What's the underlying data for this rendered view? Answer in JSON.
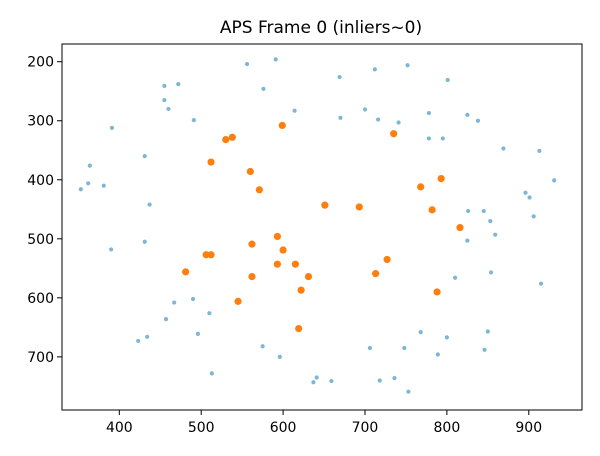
{
  "chart_data": {
    "type": "scatter",
    "title": "APS Frame 0 (inliers~0)",
    "xlabel": "",
    "ylabel": "",
    "xlim": [
      330,
      965
    ],
    "ylim": [
      790,
      170
    ],
    "y_inverted": true,
    "grid": false,
    "x_ticks": [
      400,
      500,
      600,
      700,
      800,
      900
    ],
    "y_ticks": [
      200,
      300,
      400,
      500,
      600,
      700
    ],
    "series": [
      {
        "color": "#7fb5d5",
        "marker_size": "small",
        "points": [
          [
            556,
            204
          ],
          [
            591,
            196
          ],
          [
            712,
            213
          ],
          [
            752,
            206
          ],
          [
            669,
            226
          ],
          [
            801,
            231
          ],
          [
            455,
            241
          ],
          [
            472,
            238
          ],
          [
            576,
            246
          ],
          [
            455,
            265
          ],
          [
            460,
            280
          ],
          [
            491,
            299
          ],
          [
            614,
            283
          ],
          [
            700,
            281
          ],
          [
            670,
            295
          ],
          [
            716,
            298
          ],
          [
            741,
            303
          ],
          [
            778,
            287
          ],
          [
            825,
            290
          ],
          [
            838,
            300
          ],
          [
            778,
            330
          ],
          [
            795,
            330
          ],
          [
            391,
            312
          ],
          [
            431,
            360
          ],
          [
            869,
            347
          ],
          [
            913,
            351
          ],
          [
            364,
            376
          ],
          [
            362,
            406
          ],
          [
            381,
            410
          ],
          [
            353,
            416
          ],
          [
            931,
            401
          ],
          [
            896,
            422
          ],
          [
            901,
            430
          ],
          [
            437,
            442
          ],
          [
            826,
            453
          ],
          [
            845,
            453
          ],
          [
            853,
            470
          ],
          [
            906,
            462
          ],
          [
            859,
            493
          ],
          [
            825,
            503
          ],
          [
            390,
            518
          ],
          [
            431,
            505
          ],
          [
            854,
            557
          ],
          [
            810,
            566
          ],
          [
            915,
            576
          ],
          [
            490,
            602
          ],
          [
            467,
            608
          ],
          [
            457,
            636
          ],
          [
            510,
            626
          ],
          [
            434,
            666
          ],
          [
            423,
            673
          ],
          [
            496,
            661
          ],
          [
            575,
            682
          ],
          [
            596,
            700
          ],
          [
            513,
            728
          ],
          [
            706,
            685
          ],
          [
            748,
            685
          ],
          [
            768,
            658
          ],
          [
            800,
            667
          ],
          [
            789,
            696
          ],
          [
            850,
            657
          ],
          [
            846,
            688
          ],
          [
            641,
            735
          ],
          [
            659,
            741
          ],
          [
            637,
            743
          ],
          [
            718,
            740
          ],
          [
            736,
            736
          ],
          [
            753,
            759
          ]
        ]
      },
      {
        "color": "#ff7f0e",
        "marker_size": "large",
        "points": [
          [
            599,
            308
          ],
          [
            530,
            332
          ],
          [
            538,
            328
          ],
          [
            735,
            322
          ],
          [
            512,
            370
          ],
          [
            560,
            386
          ],
          [
            571,
            417
          ],
          [
            768,
            412
          ],
          [
            793,
            398
          ],
          [
            651,
            443
          ],
          [
            693,
            446
          ],
          [
            782,
            451
          ],
          [
            816,
            481
          ],
          [
            593,
            496
          ],
          [
            562,
            509
          ],
          [
            600,
            519
          ],
          [
            481,
            556
          ],
          [
            506,
            527
          ],
          [
            512,
            527
          ],
          [
            593,
            543
          ],
          [
            615,
            543
          ],
          [
            562,
            564
          ],
          [
            631,
            564
          ],
          [
            727,
            535
          ],
          [
            713,
            559
          ],
          [
            622,
            587
          ],
          [
            788,
            590
          ],
          [
            545,
            606
          ],
          [
            619,
            652
          ]
        ]
      }
    ]
  }
}
